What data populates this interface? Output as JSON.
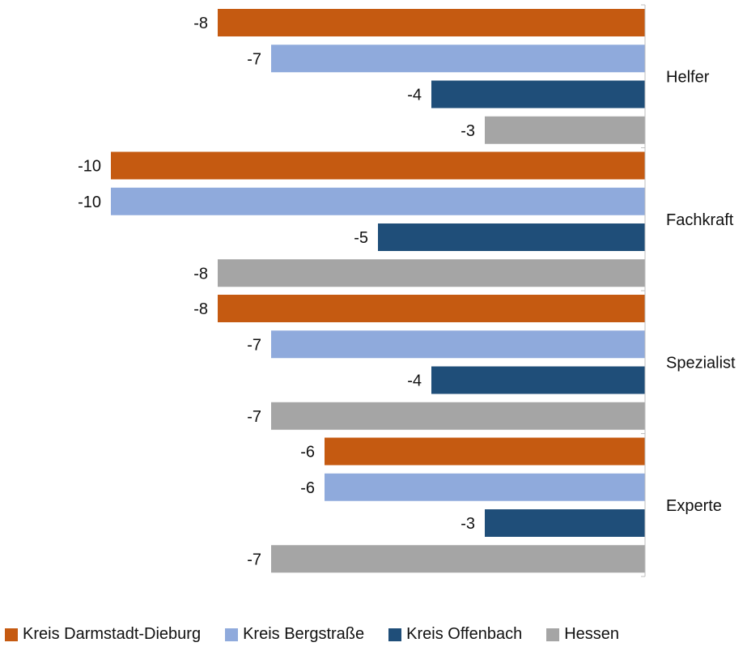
{
  "chart_data": {
    "type": "bar",
    "orientation": "horizontal",
    "categories": [
      "Helfer",
      "Fachkraft",
      "Spezialist",
      "Experte"
    ],
    "series": [
      {
        "name": "Kreis Darmstadt-Dieburg",
        "color": "#c55a11",
        "values": [
          -8,
          -10,
          -8,
          -6
        ]
      },
      {
        "name": "Kreis Bergstraße",
        "color": "#8faadc",
        "values": [
          -7,
          -10,
          -7,
          -6
        ]
      },
      {
        "name": "Kreis Offenbach",
        "color": "#1f4e79",
        "values": [
          -4,
          -5,
          -4,
          -3
        ]
      },
      {
        "name": "Hessen",
        "color": "#a5a5a5",
        "values": [
          -3,
          -8,
          -7,
          -7
        ]
      }
    ],
    "xlim": [
      -10,
      0
    ],
    "value_labels": true,
    "category_axis_side": "right",
    "legend": "bottom",
    "grid": false
  }
}
